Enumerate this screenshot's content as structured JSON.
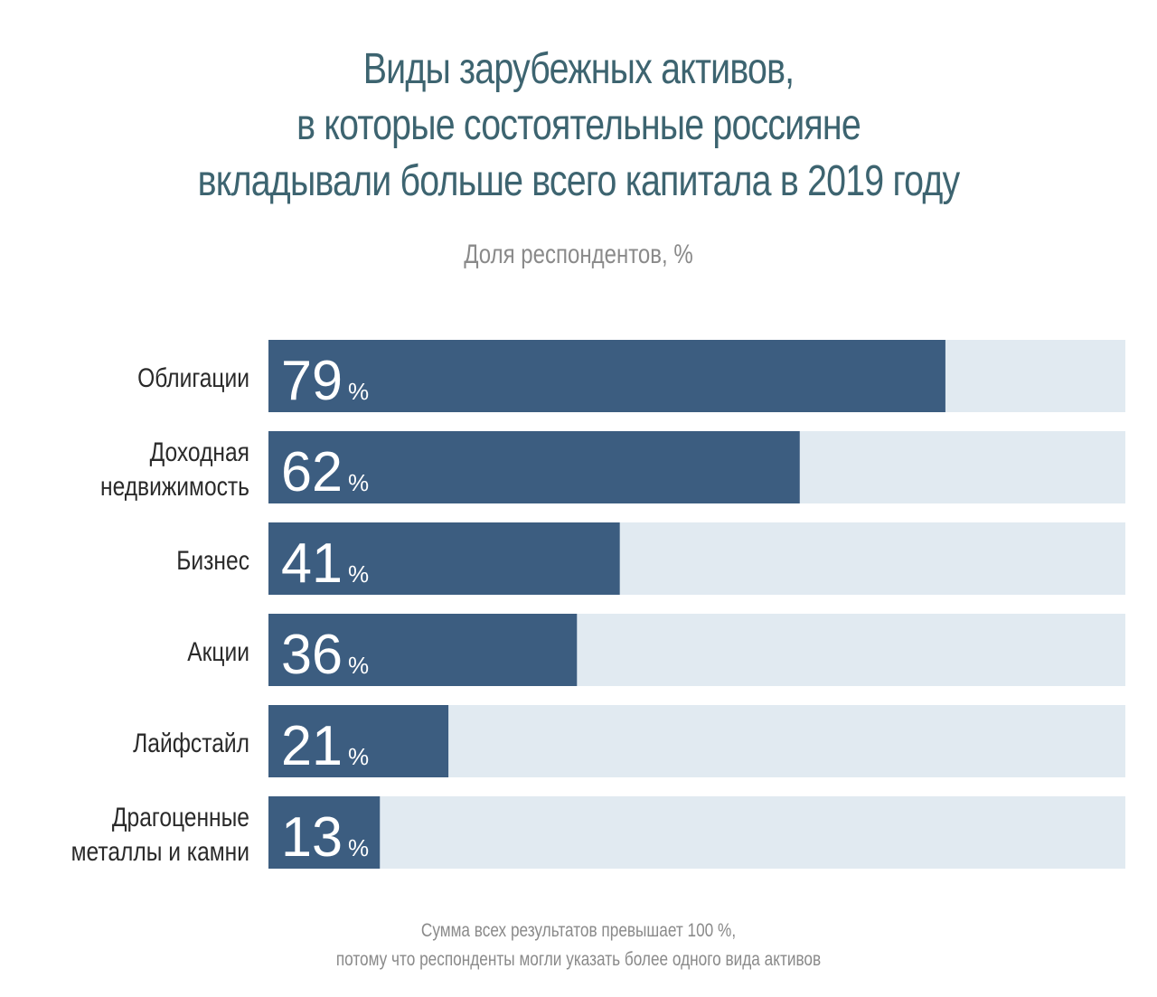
{
  "title_lines": [
    "Виды зарубежных активов,",
    "в которые состоятельные россияне",
    "вкладывали больше всего капитала в 2019 году"
  ],
  "subtitle": "Доля респондентов, %",
  "footnote_lines": [
    "Сумма всех результатов превышает 100 %,",
    "потому что респонденты могли указать более одного вида активов"
  ],
  "colors": {
    "title": "#3d6470",
    "bar": "#3c5d80",
    "track": "#e1eaf1",
    "value_text": "#ffffff",
    "label_text": "#2a2a2a",
    "muted_text": "#8a8a8a"
  },
  "chart_data": {
    "type": "bar",
    "orientation": "horizontal",
    "categories": [
      [
        "Облигации"
      ],
      [
        "Доходная",
        "недвижимость"
      ],
      [
        "Бизнес"
      ],
      [
        "Акции"
      ],
      [
        "Лайфстайл"
      ],
      [
        "Драгоценные",
        "металлы и камни"
      ]
    ],
    "values": [
      79,
      62,
      41,
      36,
      21,
      13
    ],
    "value_suffix": "%",
    "xlim": [
      0,
      100
    ],
    "ylabel": "Доля респондентов, %",
    "grid": false,
    "legend": "none"
  }
}
